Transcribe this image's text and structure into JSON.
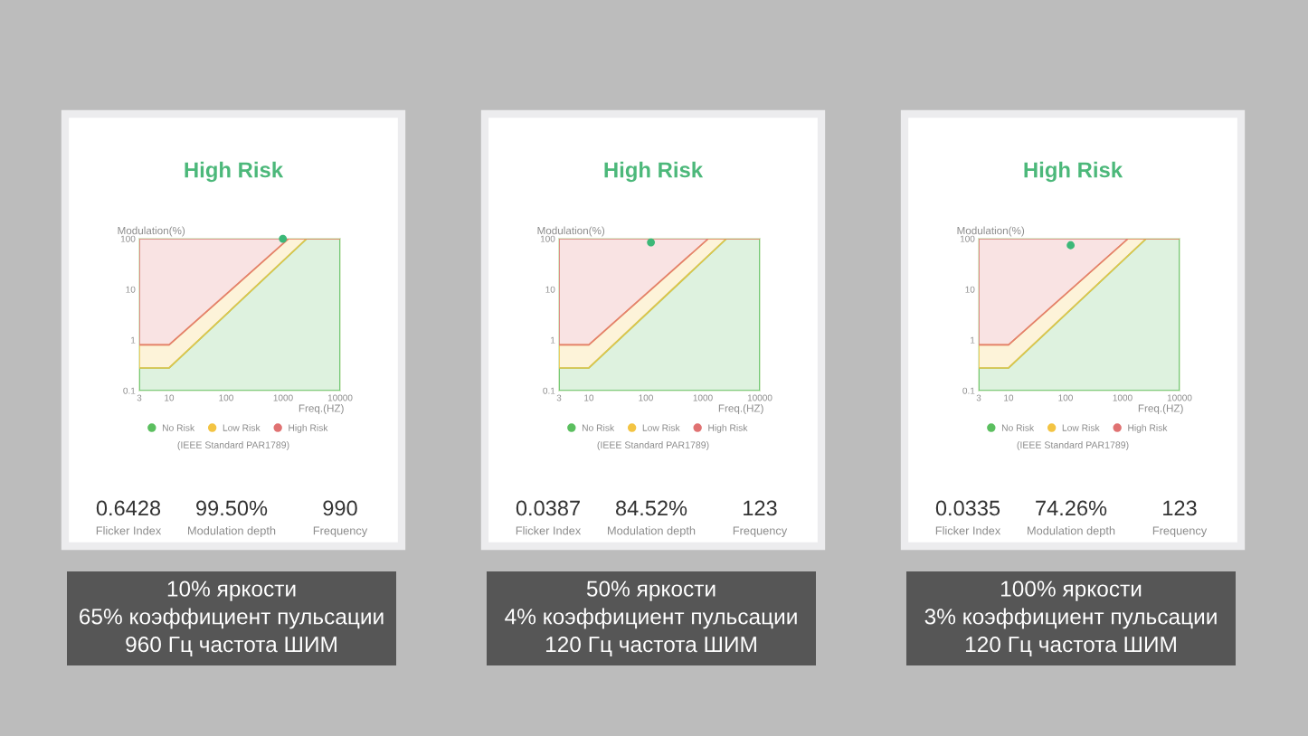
{
  "chart_data": [
    {
      "type": "area",
      "title": "High Risk",
      "xlabel": "Freq.(HZ)",
      "ylabel": "Modulation(%)",
      "log": "xy",
      "xlim": [
        3,
        10000
      ],
      "ylim": [
        0.1,
        100
      ],
      "xticks": [
        3,
        10,
        100,
        1000,
        10000
      ],
      "yticks": [
        0.1,
        1,
        10,
        100
      ],
      "legend": "bottom",
      "series": [
        {
          "name": "No Risk",
          "color": "#5bbf5f",
          "x": [
            3,
            10,
            2600,
            10000
          ],
          "values": [
            0.28,
            0.28,
            100,
            100
          ]
        },
        {
          "name": "Low Risk",
          "color": "#f3c443",
          "x": [
            3,
            10,
            1250,
            10000
          ],
          "values": [
            0.8,
            0.8,
            100,
            100
          ]
        },
        {
          "name": "High Risk",
          "color": "#e07272",
          "x": [
            3,
            10,
            1250,
            10000
          ],
          "values": [
            100,
            100,
            100,
            100
          ]
        },
        {
          "type": "scatter",
          "marker": "circle",
          "color": "#3cb878",
          "x": [
            990
          ],
          "values": [
            99.5
          ]
        }
      ],
      "annotations": [
        "(IEEE Standard PAR1789)",
        "0.6428",
        "Flicker Index",
        "99.50%",
        "Modulation depth",
        "990",
        "Frequency",
        "10% яркости\n65% коэффициент пульсации\n960 Гц частота ШИМ"
      ]
    },
    {
      "type": "area",
      "title": "High Risk",
      "xlabel": "Freq.(HZ)",
      "ylabel": "Modulation(%)",
      "log": "xy",
      "xlim": [
        3,
        10000
      ],
      "ylim": [
        0.1,
        100
      ],
      "xticks": [
        3,
        10,
        100,
        1000,
        10000
      ],
      "yticks": [
        0.1,
        1,
        10,
        100
      ],
      "legend": "bottom",
      "series": [
        {
          "name": "No Risk",
          "color": "#5bbf5f",
          "x": [
            3,
            10,
            2600,
            10000
          ],
          "values": [
            0.28,
            0.28,
            100,
            100
          ]
        },
        {
          "name": "Low Risk",
          "color": "#f3c443",
          "x": [
            3,
            10,
            1250,
            10000
          ],
          "values": [
            0.8,
            0.8,
            100,
            100
          ]
        },
        {
          "name": "High Risk",
          "color": "#e07272",
          "x": [
            3,
            10,
            1250,
            10000
          ],
          "values": [
            100,
            100,
            100,
            100
          ]
        },
        {
          "type": "scatter",
          "marker": "circle",
          "color": "#3cb878",
          "x": [
            123
          ],
          "values": [
            84.52
          ]
        }
      ],
      "annotations": [
        "(IEEE Standard PAR1789)",
        "0.0387",
        "Flicker Index",
        "84.52%",
        "Modulation depth",
        "123",
        "Frequency",
        "50% яркости\n4% коэффициент пульсации\n120 Гц частота ШИМ"
      ]
    },
    {
      "type": "area",
      "title": "High Risk",
      "xlabel": "Freq.(HZ)",
      "ylabel": "Modulation(%)",
      "log": "xy",
      "xlim": [
        3,
        10000
      ],
      "ylim": [
        0.1,
        100
      ],
      "xticks": [
        3,
        10,
        100,
        1000,
        10000
      ],
      "yticks": [
        0.1,
        1,
        10,
        100
      ],
      "legend": "bottom",
      "series": [
        {
          "name": "No Risk",
          "color": "#5bbf5f",
          "x": [
            3,
            10,
            2600,
            10000
          ],
          "values": [
            0.28,
            0.28,
            100,
            100
          ]
        },
        {
          "name": "Low Risk",
          "color": "#f3c443",
          "x": [
            3,
            10,
            1250,
            10000
          ],
          "values": [
            0.8,
            0.8,
            100,
            100
          ]
        },
        {
          "name": "High Risk",
          "color": "#e07272",
          "x": [
            3,
            10,
            1250,
            10000
          ],
          "values": [
            100,
            100,
            100,
            100
          ]
        },
        {
          "type": "scatter",
          "marker": "circle",
          "color": "#3cb878",
          "x": [
            123
          ],
          "values": [
            74.26
          ]
        }
      ],
      "annotations": [
        "(IEEE Standard PAR1789)",
        "0.0335",
        "Flicker Index",
        "74.26%",
        "Modulation depth",
        "123",
        "Frequency",
        "100% яркости\n3% коэффициент пульсации\n120 Гц частота ШИМ"
      ]
    }
  ]
}
